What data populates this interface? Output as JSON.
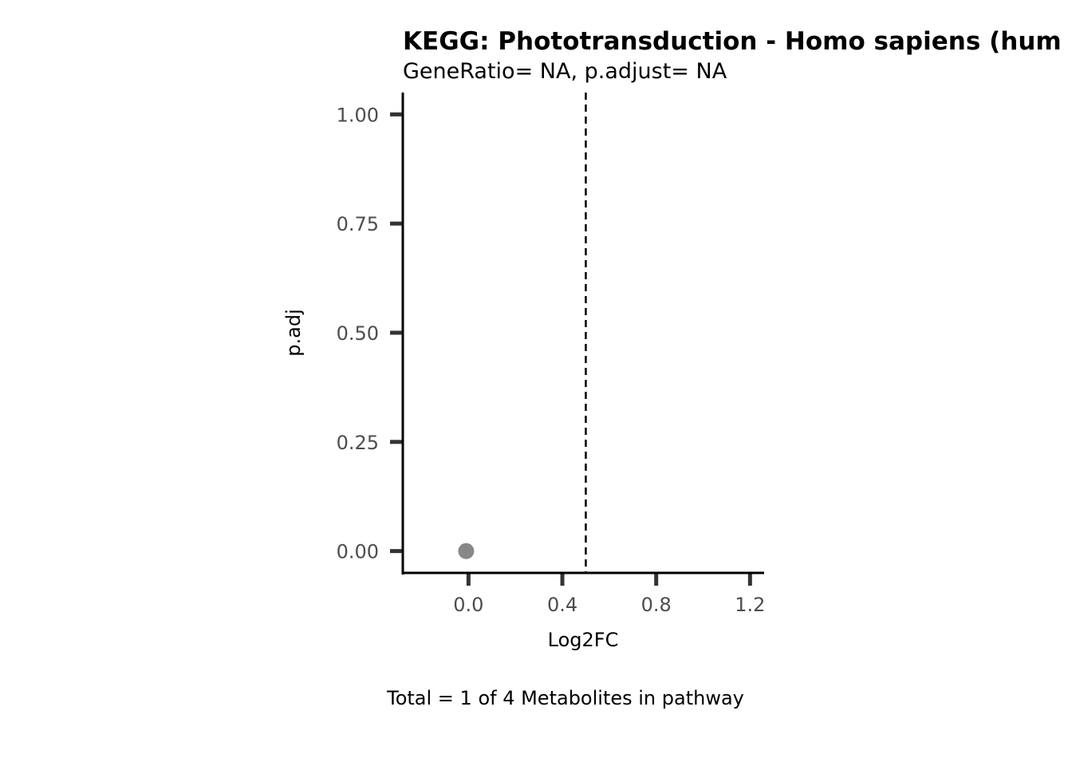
{
  "chart_data": {
    "type": "scatter",
    "title": "KEGG: Phototransduction - Homo sapiens (hum",
    "subtitle": "GeneRatio= NA, p.adjust= NA",
    "xlabel": "Log2FC",
    "ylabel": "p.adj",
    "caption": "Total = 1 of 4 Metabolites in pathway",
    "xlim": [
      -0.28,
      1.26
    ],
    "ylim": [
      -0.05,
      1.05
    ],
    "x_ticks": [
      0.0,
      0.4,
      0.8,
      1.2
    ],
    "x_tick_labels": [
      "0.0",
      "0.4",
      "0.8",
      "1.2"
    ],
    "y_ticks": [
      0.0,
      0.25,
      0.5,
      0.75,
      1.0
    ],
    "y_tick_labels": [
      "0.00",
      "0.25",
      "0.50",
      "0.75",
      "1.00"
    ],
    "vline": {
      "x": 0.5,
      "style": "dashed",
      "color": "#000000"
    },
    "points": [
      {
        "x": -0.01,
        "y": 0.0
      }
    ],
    "point_color": "#888888",
    "grid": false,
    "legend": "none"
  }
}
